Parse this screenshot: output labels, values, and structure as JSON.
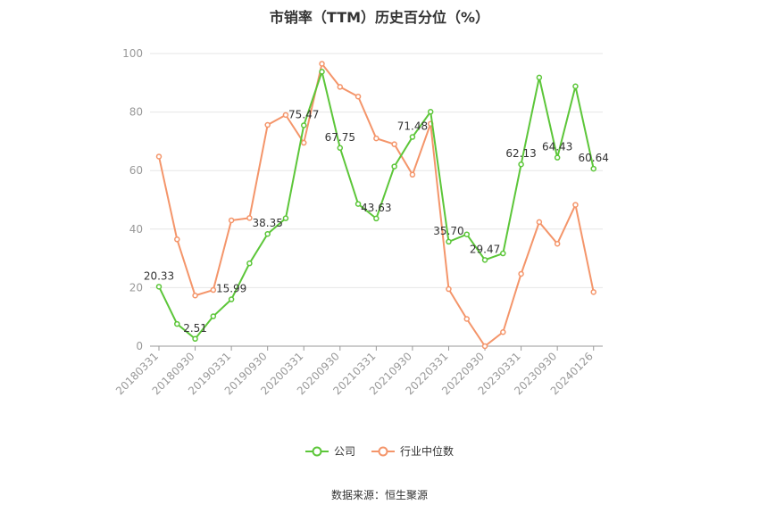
{
  "chart_data": {
    "type": "line",
    "title": "市销率（TTM）历史百分位（%）",
    "ylim": [
      0,
      100
    ],
    "yticks": [
      "0",
      "20",
      "40",
      "60",
      "80",
      "100"
    ],
    "xtick_labels": [
      "20180331",
      "20180930",
      "20190331",
      "20190930",
      "20200331",
      "20200930",
      "20210331",
      "20210930",
      "20220331",
      "20220930",
      "20230331",
      "20230930",
      "20240126"
    ],
    "xtick_indices": [
      0,
      2,
      4,
      6,
      8,
      10,
      12,
      14,
      16,
      18,
      20,
      22,
      24
    ],
    "point_count": 25,
    "series": [
      {
        "name": "公司",
        "color": "#5cc639",
        "values": [
          20.33,
          7.6,
          2.51,
          10.2,
          15.99,
          28.3,
          38.35,
          43.7,
          75.47,
          93.8,
          67.75,
          48.6,
          43.63,
          61.4,
          71.48,
          80.1,
          35.7,
          38.2,
          29.47,
          31.7,
          62.13,
          91.8,
          64.43,
          88.8,
          60.64
        ],
        "labels": {
          "0": "20.33",
          "2": "2.51",
          "4": "15.99",
          "6": "38.35",
          "8": "75.47",
          "10": "67.75",
          "12": "43.63",
          "14": "71.48",
          "16": "35.70",
          "18": "29.47",
          "20": "62.13",
          "22": "64.43",
          "24": "60.64"
        }
      },
      {
        "name": "行业中位数",
        "color": "#f4956a",
        "values": [
          64.8,
          36.5,
          17.3,
          19.2,
          43.0,
          43.8,
          75.6,
          79.0,
          69.5,
          96.5,
          88.6,
          85.3,
          71.0,
          69.0,
          58.6,
          76.0,
          19.5,
          9.3,
          0.0,
          4.8,
          24.7,
          42.4,
          35.0,
          48.3,
          18.5
        ]
      }
    ]
  },
  "legend": {
    "company": "公司",
    "industry": "行业中位数"
  },
  "source": "数据来源：恒生聚源"
}
